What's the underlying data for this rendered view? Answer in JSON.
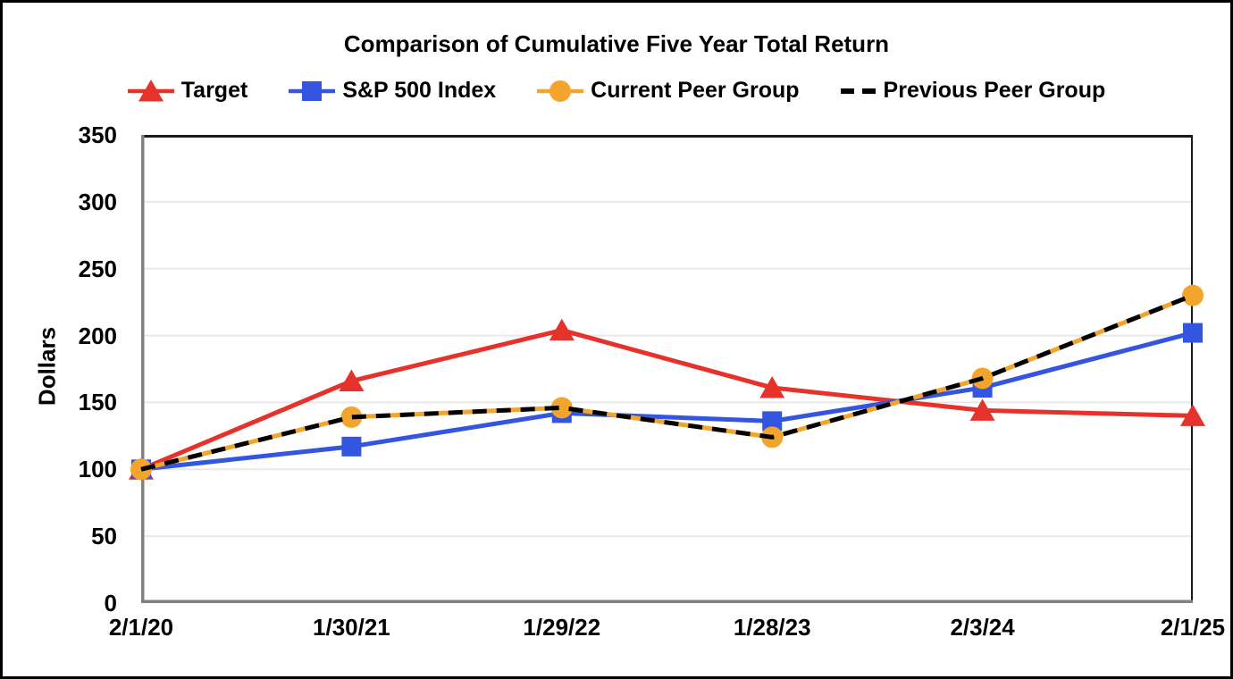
{
  "page": {
    "background": "#FFFFFF",
    "frame_color": "#000000",
    "text_color": "#000000"
  },
  "chart_data": {
    "type": "line",
    "title": "Comparison of Cumulative Five Year Total Return",
    "ylabel": "Dollars",
    "xlabel": "",
    "ylim": [
      0,
      350
    ],
    "yticks": [
      0,
      50,
      100,
      150,
      200,
      250,
      300,
      350
    ],
    "grid": true,
    "legend_position": "top",
    "categories": [
      "2/1/20",
      "1/30/21",
      "1/29/22",
      "1/28/23",
      "2/3/24",
      "2/1/25"
    ],
    "series": [
      {
        "name": "Target",
        "color": "#E5322B",
        "marker": "triangle",
        "line_style": "solid",
        "values": [
          100,
          166,
          204,
          161,
          144,
          140
        ]
      },
      {
        "name": "S&P 500 Index",
        "color": "#3355E0",
        "marker": "square",
        "line_style": "solid",
        "values": [
          100,
          117,
          142,
          136,
          161,
          202
        ]
      },
      {
        "name": "Current Peer Group",
        "color": "#F2A42C",
        "marker": "circle",
        "line_style": "solid",
        "values": [
          100,
          139,
          146,
          124,
          168,
          230
        ]
      },
      {
        "name": "Previous Peer Group",
        "color": "#000000",
        "marker": "none",
        "line_style": "dashed",
        "values": [
          100,
          139,
          146,
          124,
          168,
          230
        ]
      }
    ],
    "style": {
      "gridline_color": "#E8E8E8",
      "border_dark": "#1A1A1A",
      "border_gray": "#808080"
    }
  }
}
